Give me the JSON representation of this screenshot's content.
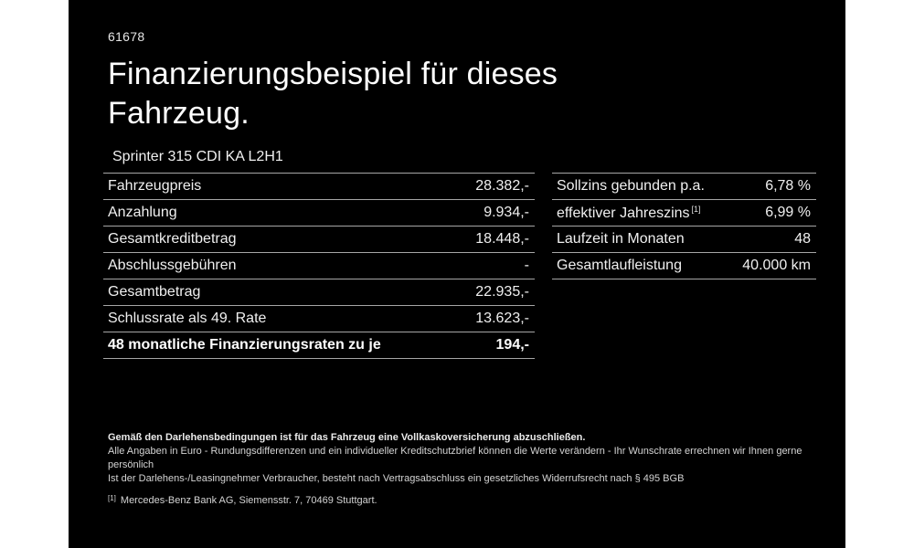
{
  "page": {
    "listing_id": "61678",
    "title": "Finanzierungsbeispiel für dieses\nFahrzeug.",
    "vehicle_model": "Sprinter 315 CDI KA L2H1"
  },
  "finance_table": {
    "rows": [
      {
        "label": "Fahrzeugpreis",
        "value": "28.382,-",
        "bold": false
      },
      {
        "label": "Anzahlung",
        "value": "9.934,-",
        "bold": false
      },
      {
        "label": "Gesamtkreditbetrag",
        "value": "18.448,-",
        "bold": false
      },
      {
        "label": "Abschlussgebühren",
        "value": "-",
        "bold": false
      },
      {
        "label": "Gesamtbetrag",
        "value": "22.935,-",
        "bold": false
      },
      {
        "label": "Schlussrate als 49. Rate",
        "value": "13.623,-",
        "bold": false
      },
      {
        "label": "48 monatliche Finanzierungsraten zu je",
        "value": "194,-",
        "bold": true
      }
    ]
  },
  "conditions_table": {
    "rows": [
      {
        "label": "Sollzins gebunden p.a.",
        "value": "6,78 %",
        "bold": false
      },
      {
        "label": "effektiver Jahreszins",
        "label_sup": "[1]",
        "value": "6,99 %",
        "bold": false
      },
      {
        "label": "Laufzeit in Monaten",
        "value": "48",
        "bold": false
      },
      {
        "label": "Gesamtlaufleistung",
        "value": "40.000 km",
        "bold": false
      }
    ]
  },
  "footer": {
    "insurance_note": "Gemäß den Darlehensbedingungen ist für das Fahrzeug eine Vollkaskoversicherung abzuschließen.",
    "note_line1": "Alle Angaben in Euro - Rundungsdifferenzen und ein individueller Kreditschutzbrief können die Werte verändern - Ihr Wunschrate errechnen wir Ihnen gerne persönlich",
    "note_line2": "Ist der Darlehens-/Leasingnehmer Verbraucher, besteht nach Vertragsabschluss ein gesetzliches Widerrufsrecht nach § 495 BGB",
    "footnote_marker": "[1]",
    "footnote_text": "Mercedes-Benz Bank AG, Siemensstr. 7, 70469 Stuttgart."
  },
  "colors": {
    "background": "#ffffff",
    "panel": "#000000",
    "text": "#f0f0f0",
    "divider": "#a6a6a6"
  }
}
